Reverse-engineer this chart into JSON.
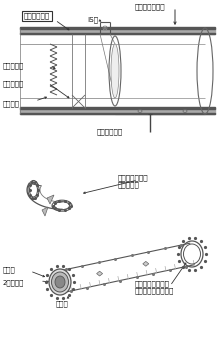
{
  "bg_color": "#ffffff",
  "lc": "#444444",
  "gray1": "#999999",
  "gray2": "#cccccc",
  "gray3": "#666666",
  "label_enclosure_top": "エンクロージャ",
  "label_leakage": "漏えい検出器",
  "label_IS": "IS孔",
  "label_nitrogen": "窒素雰囲気",
  "label_zone": "区画化構造",
  "label_bellows": "ベローズ",
  "label_pipe_support": "配管サポート",
  "label_enclosure_carbon": "エンクロージャ\n（炭素鋼）",
  "label_inner_plate": "内装板",
  "label_secondary_pipe": "2次系配管",
  "label_insulation": "保温材",
  "label_split_flange": "分割フランジ構造\n（リップシール付）",
  "figsize": [
    2.2,
    3.46
  ],
  "dpi": 100
}
